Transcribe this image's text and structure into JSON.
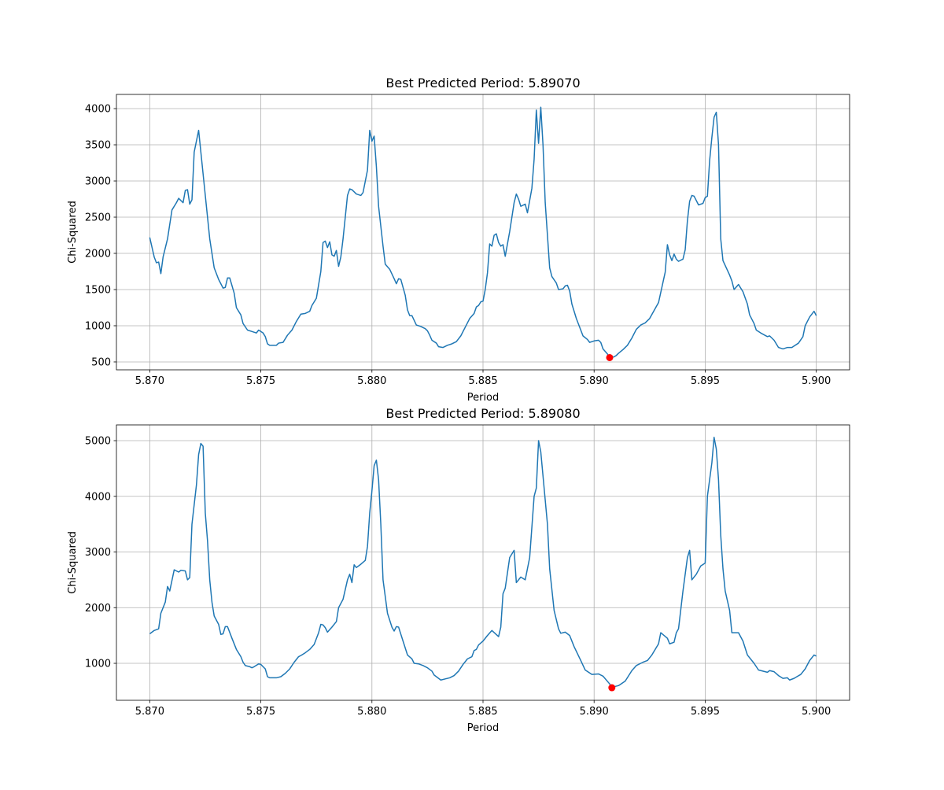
{
  "chart_data": [
    {
      "type": "line",
      "title": "Best Predicted Period: 5.89070",
      "x_label": "Period",
      "y_label": "Chi-Squared",
      "grid": true,
      "xlim": [
        5.8685,
        5.9015
      ],
      "ylim": [
        391,
        4196
      ],
      "xticks": [
        {
          "value": 5.87,
          "label": "5.870"
        },
        {
          "value": 5.875,
          "label": "5.875"
        },
        {
          "value": 5.88,
          "label": "5.880"
        },
        {
          "value": 5.885,
          "label": "5.885"
        },
        {
          "value": 5.89,
          "label": "5.890"
        },
        {
          "value": 5.895,
          "label": "5.895"
        },
        {
          "value": 5.9,
          "label": "5.900"
        }
      ],
      "yticks": [
        500,
        1000,
        1500,
        2000,
        2500,
        3000,
        3500,
        4000
      ],
      "x": [
        5.87,
        5.8702,
        5.8703,
        5.8704,
        5.8705,
        5.8706,
        5.8708,
        5.871,
        5.8712,
        5.8713,
        5.8715,
        5.8716,
        5.8717,
        5.8718,
        5.8719,
        5.872,
        5.8721,
        5.8722,
        5.8723,
        5.8725,
        5.8727,
        5.8729,
        5.8731,
        5.8733,
        5.8734,
        5.8735,
        5.8736,
        5.8738,
        5.8739,
        5.8741,
        5.8742,
        5.8744,
        5.8746,
        5.8748,
        5.8749,
        5.8751,
        5.8752,
        5.8753,
        5.8754,
        5.8757,
        5.8758,
        5.876,
        5.8762,
        5.8764,
        5.8766,
        5.8768,
        5.877,
        5.8772,
        5.8773,
        5.8775,
        5.8777,
        5.8778,
        5.8779,
        5.878,
        5.8781,
        5.8782,
        5.8783,
        5.8784,
        5.8785,
        5.8786,
        5.8787,
        5.8789,
        5.879,
        5.8791,
        5.8793,
        5.8795,
        5.8796,
        5.8798,
        5.8799,
        5.88,
        5.8801,
        5.8802,
        5.8803,
        5.8805,
        5.8806,
        5.8808,
        5.881,
        5.8811,
        5.8812,
        5.8813,
        5.8815,
        5.8816,
        5.8817,
        5.8818,
        5.882,
        5.8822,
        5.8824,
        5.8825,
        5.8826,
        5.8827,
        5.8829,
        5.883,
        5.8832,
        5.8834,
        5.8836,
        5.8838,
        5.884,
        5.8842,
        5.8844,
        5.8846,
        5.8847,
        5.8848,
        5.8849,
        5.885,
        5.8851,
        5.8852,
        5.8853,
        5.8854,
        5.8855,
        5.8856,
        5.8857,
        5.8858,
        5.8859,
        5.886,
        5.8862,
        5.8864,
        5.8865,
        5.8866,
        5.8867,
        5.8869,
        5.887,
        5.8872,
        5.8873,
        5.8874,
        5.8875,
        5.8876,
        5.8877,
        5.8878,
        5.888,
        5.8881,
        5.8883,
        5.8884,
        5.8886,
        5.8887,
        5.8888,
        5.8889,
        5.889,
        5.8892,
        5.8893,
        5.8895,
        5.8897,
        5.8898,
        5.89,
        5.8902,
        5.8903,
        5.8904,
        5.8906,
        5.8907,
        5.8909,
        5.891,
        5.8911,
        5.8913,
        5.8915,
        5.8917,
        5.8919,
        5.8921,
        5.8923,
        5.8925,
        5.8927,
        5.8929,
        5.8931,
        5.8932,
        5.8933,
        5.8934,
        5.8935,
        5.8936,
        5.8937,
        5.8938,
        5.894,
        5.8941,
        5.8942,
        5.8943,
        5.8944,
        5.8945,
        5.8947,
        5.8948,
        5.8949,
        5.895,
        5.8951,
        5.8952,
        5.8953,
        5.8954,
        5.8955,
        5.8956,
        5.8957,
        5.8958,
        5.8961,
        5.8962,
        5.8963,
        5.8965,
        5.8967,
        5.8969,
        5.897,
        5.8972,
        5.8973,
        5.8975,
        5.8978,
        5.8979,
        5.8981,
        5.8983,
        5.8985,
        5.8987,
        5.8989,
        5.8992,
        5.8994,
        5.8995,
        5.8997,
        5.8999,
        5.9
      ],
      "series": [
        {
          "color": "#1f77b4",
          "values": [
            2220,
            1950,
            1870,
            1880,
            1720,
            1950,
            2200,
            2600,
            2700,
            2760,
            2700,
            2870,
            2880,
            2680,
            2740,
            3400,
            3550,
            3700,
            3400,
            2800,
            2200,
            1800,
            1640,
            1520,
            1530,
            1660,
            1660,
            1450,
            1250,
            1150,
            1030,
            940,
            920,
            900,
            940,
            900,
            850,
            750,
            730,
            730,
            760,
            770,
            870,
            940,
            1060,
            1160,
            1170,
            1200,
            1280,
            1380,
            1750,
            2150,
            2170,
            2080,
            2160,
            1980,
            1960,
            2040,
            1820,
            1950,
            2200,
            2800,
            2890,
            2880,
            2820,
            2800,
            2840,
            3150,
            3700,
            3550,
            3620,
            3200,
            2650,
            2100,
            1850,
            1780,
            1650,
            1580,
            1650,
            1640,
            1420,
            1220,
            1140,
            1140,
            1010,
            990,
            960,
            930,
            870,
            800,
            760,
            710,
            700,
            730,
            750,
            780,
            860,
            980,
            1100,
            1170,
            1260,
            1280,
            1330,
            1340,
            1500,
            1730,
            2130,
            2100,
            2250,
            2270,
            2150,
            2100,
            2120,
            1960,
            2300,
            2700,
            2820,
            2750,
            2650,
            2680,
            2560,
            2900,
            3300,
            3980,
            3520,
            4020,
            3500,
            2700,
            1800,
            1680,
            1590,
            1500,
            1510,
            1550,
            1560,
            1480,
            1300,
            1100,
            1020,
            860,
            810,
            770,
            790,
            800,
            770,
            680,
            610,
            560,
            570,
            590,
            620,
            670,
            730,
            830,
            950,
            1010,
            1040,
            1100,
            1210,
            1320,
            1600,
            1740,
            2120,
            1980,
            1900,
            1990,
            1920,
            1890,
            1920,
            2050,
            2450,
            2720,
            2800,
            2790,
            2670,
            2680,
            2690,
            2770,
            2790,
            3280,
            3600,
            3880,
            3950,
            3500,
            2200,
            1900,
            1700,
            1620,
            1500,
            1570,
            1470,
            1300,
            1150,
            1030,
            940,
            900,
            850,
            860,
            800,
            700,
            680,
            700,
            700,
            760,
            850,
            1000,
            1120,
            1200,
            1140
          ]
        }
      ],
      "marker": {
        "x": 5.8907,
        "y": 560,
        "color": "#ff0000"
      }
    },
    {
      "type": "line",
      "title": "Best Predicted Period: 5.89080",
      "x_label": "Period",
      "y_label": "Chi-Squared",
      "grid": true,
      "xlim": [
        5.8685,
        5.9015
      ],
      "ylim": [
        336,
        5283
      ],
      "xticks": [
        {
          "value": 5.87,
          "label": "5.870"
        },
        {
          "value": 5.875,
          "label": "5.875"
        },
        {
          "value": 5.88,
          "label": "5.880"
        },
        {
          "value": 5.885,
          "label": "5.885"
        },
        {
          "value": 5.89,
          "label": "5.890"
        },
        {
          "value": 5.895,
          "label": "5.895"
        },
        {
          "value": 5.9,
          "label": "5.900"
        }
      ],
      "yticks": [
        1000,
        2000,
        3000,
        4000,
        5000
      ],
      "x": [
        5.87,
        5.8702,
        5.8704,
        5.8705,
        5.8707,
        5.8708,
        5.8709,
        5.8711,
        5.8713,
        5.8714,
        5.8716,
        5.8717,
        5.8718,
        5.8719,
        5.8721,
        5.8722,
        5.8723,
        5.8724,
        5.8725,
        5.8726,
        5.8727,
        5.8728,
        5.8729,
        5.8731,
        5.8732,
        5.8733,
        5.8734,
        5.8735,
        5.8737,
        5.8739,
        5.8741,
        5.8742,
        5.8743,
        5.8745,
        5.8746,
        5.8747,
        5.8749,
        5.875,
        5.8752,
        5.8753,
        5.8754,
        5.8757,
        5.8759,
        5.8761,
        5.8763,
        5.8765,
        5.8767,
        5.8768,
        5.877,
        5.8772,
        5.8774,
        5.8776,
        5.8777,
        5.8778,
        5.8779,
        5.878,
        5.8782,
        5.8784,
        5.8785,
        5.8787,
        5.8789,
        5.879,
        5.8791,
        5.8792,
        5.8793,
        5.8795,
        5.8797,
        5.8798,
        5.8799,
        5.88,
        5.8801,
        5.8802,
        5.8803,
        5.8804,
        5.8805,
        5.8807,
        5.8809,
        5.881,
        5.8811,
        5.8812,
        5.8814,
        5.8816,
        5.8818,
        5.8819,
        5.8821,
        5.8823,
        5.8825,
        5.8827,
        5.8828,
        5.883,
        5.8831,
        5.8833,
        5.8835,
        5.8837,
        5.8839,
        5.8841,
        5.8843,
        5.8845,
        5.8846,
        5.8847,
        5.8848,
        5.885,
        5.8852,
        5.8854,
        5.8857,
        5.8858,
        5.8859,
        5.886,
        5.8862,
        5.8864,
        5.8865,
        5.8867,
        5.8869,
        5.8871,
        5.8873,
        5.8874,
        5.8875,
        5.8876,
        5.8879,
        5.888,
        5.8882,
        5.8884,
        5.8885,
        5.8887,
        5.8889,
        5.8891,
        5.8894,
        5.8896,
        5.8899,
        5.8902,
        5.8904,
        5.8907,
        5.8908,
        5.8911,
        5.8914,
        5.8917,
        5.8919,
        5.8922,
        5.8924,
        5.8926,
        5.8929,
        5.893,
        5.8933,
        5.8934,
        5.8936,
        5.8937,
        5.8938,
        5.894,
        5.8942,
        5.8943,
        5.8944,
        5.8946,
        5.8948,
        5.895,
        5.8951,
        5.8953,
        5.8954,
        5.8955,
        5.8956,
        5.8957,
        5.8958,
        5.8959,
        5.8961,
        5.8962,
        5.8965,
        5.8967,
        5.8969,
        5.8972,
        5.8974,
        5.8978,
        5.8979,
        5.8981,
        5.8983,
        5.8985,
        5.8987,
        5.8988,
        5.899,
        5.8993,
        5.8995,
        5.8997,
        5.8999,
        5.9
      ],
      "series": [
        {
          "color": "#1f77b4",
          "values": [
            1530,
            1590,
            1620,
            1900,
            2100,
            2380,
            2300,
            2680,
            2640,
            2670,
            2660,
            2500,
            2540,
            3500,
            4200,
            4750,
            4950,
            4900,
            3700,
            3200,
            2500,
            2100,
            1850,
            1700,
            1520,
            1530,
            1660,
            1660,
            1450,
            1250,
            1120,
            1020,
            960,
            940,
            920,
            940,
            990,
            980,
            900,
            760,
            740,
            740,
            760,
            820,
            900,
            1020,
            1120,
            1140,
            1190,
            1250,
            1340,
            1550,
            1700,
            1690,
            1640,
            1560,
            1650,
            1750,
            2000,
            2150,
            2500,
            2600,
            2450,
            2770,
            2720,
            2780,
            2850,
            3100,
            3700,
            4100,
            4550,
            4650,
            4300,
            3500,
            2500,
            1900,
            1650,
            1580,
            1660,
            1650,
            1400,
            1150,
            1080,
            1000,
            990,
            960,
            920,
            860,
            790,
            730,
            700,
            720,
            740,
            780,
            860,
            980,
            1080,
            1120,
            1230,
            1250,
            1330,
            1400,
            1500,
            1590,
            1480,
            1650,
            2250,
            2350,
            2900,
            3030,
            2450,
            2550,
            2500,
            2900,
            4000,
            4150,
            5000,
            4800,
            3500,
            2700,
            1950,
            1620,
            1540,
            1560,
            1500,
            1300,
            1050,
            880,
            800,
            810,
            770,
            630,
            570,
            600,
            680,
            870,
            960,
            1020,
            1050,
            1150,
            1350,
            1550,
            1450,
            1350,
            1380,
            1550,
            1620,
            2300,
            2900,
            3030,
            2500,
            2600,
            2750,
            2800,
            4000,
            4600,
            5060,
            4850,
            4300,
            3300,
            2700,
            2300,
            1950,
            1550,
            1550,
            1400,
            1150,
            1000,
            880,
            840,
            870,
            850,
            780,
            730,
            740,
            700,
            730,
            800,
            900,
            1050,
            1150,
            1130
          ]
        }
      ],
      "marker": {
        "x": 5.8908,
        "y": 562,
        "color": "#ff0000"
      }
    }
  ]
}
